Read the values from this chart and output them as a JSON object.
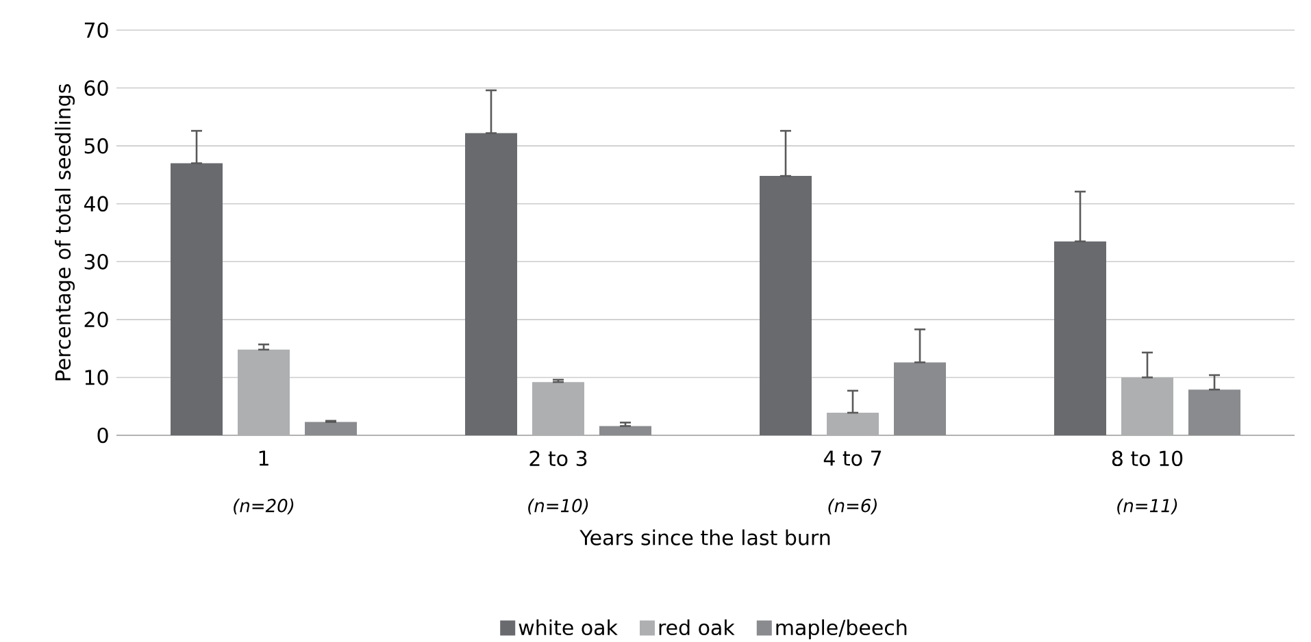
{
  "chart_data": {
    "type": "bar",
    "xlabel": "Years since the last burn",
    "ylabel": "Percentage of total seedlings",
    "categories": [
      "1",
      "2 to 3",
      "4 to 7",
      "8 to 10"
    ],
    "series": [
      {
        "name": "white oak",
        "color": "#696a6e",
        "values": [
          47.0,
          52.2,
          44.8,
          33.5
        ],
        "errors": [
          [
            47.0,
            52.6
          ],
          [
            52.2,
            59.6
          ],
          [
            44.8,
            52.6
          ],
          [
            33.5,
            42.1
          ]
        ]
      },
      {
        "name": "red oak",
        "color": "#aeafb1",
        "values": [
          14.8,
          9.2,
          3.9,
          10.0
        ],
        "errors": [
          [
            14.8,
            15.7
          ],
          [
            9.2,
            9.6
          ],
          [
            3.9,
            7.7
          ],
          [
            10.0,
            14.3
          ]
        ]
      },
      {
        "name": "maple/beech",
        "color": "#8a8b8e",
        "values": [
          2.3,
          1.6,
          12.6,
          7.9
        ],
        "errors": [
          [
            2.3,
            2.5
          ],
          [
            1.6,
            2.2
          ],
          [
            12.6,
            18.3
          ],
          [
            7.9,
            10.4
          ]
        ]
      }
    ],
    "annotations": [
      "*(n=20)*",
      "*(n=10)*",
      "*(n=6)*",
      "*(n=11)*"
    ],
    "ylim": [
      0,
      70
    ],
    "yticks": [
      0,
      10,
      20,
      30,
      40,
      50,
      60,
      70
    ],
    "grid": "y",
    "legend": "bottom"
  }
}
